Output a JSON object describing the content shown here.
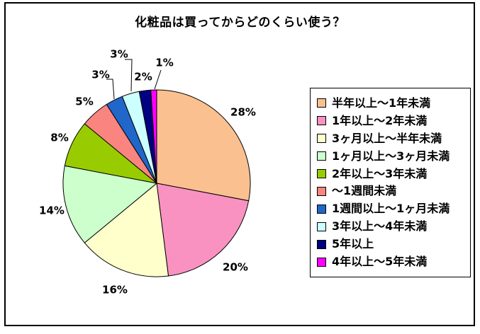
{
  "page": {
    "background_color": "#FFFFFF",
    "frame_border_color": "#000000"
  },
  "chart_data": {
    "type": "pie",
    "title": "化粧品は買ってからどのくらい使う？",
    "legend_position": "right",
    "start_angle": "12-oclock",
    "direction": "clockwise",
    "outline_color": "#000000",
    "slices": [
      {
        "label": "半年以上～1年未満",
        "value": 28,
        "pct_label": "28%",
        "color": "#FAC090"
      },
      {
        "label": "1年以上～2年未満",
        "value": 20,
        "pct_label": "20%",
        "color": "#F992C0"
      },
      {
        "label": "3ヶ月以上～半年未満",
        "value": 16,
        "pct_label": "16%",
        "color": "#FFFFCC"
      },
      {
        "label": "1ヶ月以上～3ヶ月未満",
        "value": 14,
        "pct_label": "14%",
        "color": "#CCFFCC"
      },
      {
        "label": "2年以上～3年未満",
        "value": 8,
        "pct_label": "8%",
        "color": "#99CC00"
      },
      {
        "label": "～1週間未満",
        "value": 5,
        "pct_label": "5%",
        "color": "#F98480"
      },
      {
        "label": "1週間以上～1ヶ月未満",
        "value": 3,
        "pct_label": "3%",
        "color": "#2166C9"
      },
      {
        "label": "3年以上～4年未満",
        "value": 3,
        "pct_label": "3%",
        "color": "#CCFFFF"
      },
      {
        "label": "5年以上",
        "value": 2,
        "pct_label": "2%",
        "color": "#000080"
      },
      {
        "label": "4年以上～5年未満",
        "value": 1,
        "pct_label": "1%",
        "color": "#FF00FF"
      }
    ]
  }
}
